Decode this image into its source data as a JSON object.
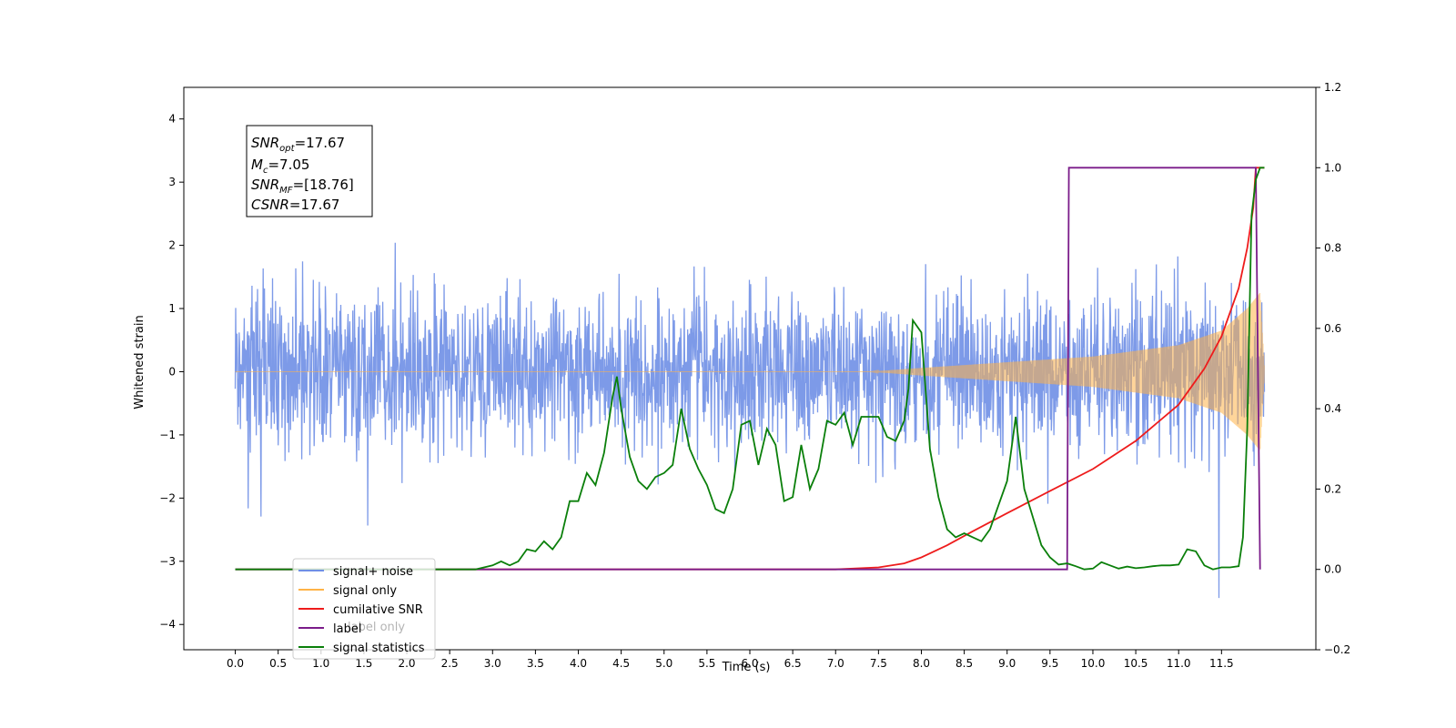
{
  "chart_data": {
    "type": "line",
    "title": "",
    "xlabel": "Time (s)",
    "ylabel_left": "Whitened strain",
    "ylabel_right": "",
    "xlim": [
      -0.6,
      12.6
    ],
    "ylim_left": [
      -4.4,
      4.5
    ],
    "ylim_right": [
      -0.2,
      1.2
    ],
    "x_ticks": [
      "0.0",
      "0.5",
      "1.0",
      "1.5",
      "2.0",
      "2.5",
      "3.0",
      "3.5",
      "4.0",
      "4.5",
      "5.0",
      "5.5",
      "6.0",
      "6.5",
      "7.0",
      "7.5",
      "8.0",
      "8.5",
      "9.0",
      "9.5",
      "10.0",
      "10.5",
      "11.0",
      "11.5"
    ],
    "y_ticks_left": [
      "−4",
      "−3",
      "−2",
      "−1",
      "0",
      "1",
      "2",
      "3",
      "4"
    ],
    "y_ticks_right": [
      "−0.2",
      "0.0",
      "0.2",
      "0.4",
      "0.6",
      "0.8",
      "1.0",
      "1.2"
    ],
    "grid": false,
    "legend_position": "lower-left",
    "annotation": {
      "snr_opt": "=17.67",
      "mc": "=7.05",
      "snr_mf": "=[18.76]",
      "csnr": "=17.67"
    },
    "series": [
      {
        "name": "signal+ noise",
        "axis": "left",
        "color": "#6f8fe6",
        "description": "noise-dominated strain, roughly within ±2.5 with spikes to ±4, from t=0 to t=12",
        "envelope": {
          "typical": 1.6,
          "spike": 3.9
        }
      },
      {
        "name": "signal only",
        "axis": "left",
        "color": "#ffb347",
        "description": "chirp signal growing from 0 at ~7.5s to amplitude ~1.2 at ~11.9s",
        "amplitude_points": [
          [
            0,
            0.0
          ],
          [
            7.4,
            0.0
          ],
          [
            8.0,
            0.06
          ],
          [
            9.0,
            0.15
          ],
          [
            10.0,
            0.24
          ],
          [
            11.0,
            0.42
          ],
          [
            11.5,
            0.65
          ],
          [
            11.8,
            1.0
          ],
          [
            11.95,
            1.25
          ],
          [
            12.0,
            0.1
          ]
        ]
      },
      {
        "name": "cumilative SNR",
        "axis": "right",
        "color": "#ee1c1c",
        "points": [
          [
            0,
            0.0
          ],
          [
            7.0,
            0.0
          ],
          [
            7.5,
            0.005
          ],
          [
            7.8,
            0.015
          ],
          [
            8.0,
            0.03
          ],
          [
            8.3,
            0.06
          ],
          [
            8.6,
            0.095
          ],
          [
            9.0,
            0.14
          ],
          [
            9.5,
            0.195
          ],
          [
            10.0,
            0.25
          ],
          [
            10.5,
            0.32
          ],
          [
            11.0,
            0.41
          ],
          [
            11.3,
            0.5
          ],
          [
            11.5,
            0.58
          ],
          [
            11.7,
            0.7
          ],
          [
            11.8,
            0.8
          ],
          [
            11.87,
            0.9
          ],
          [
            11.9,
            1.0
          ],
          [
            12.0,
            1.0
          ]
        ]
      },
      {
        "name": "label",
        "axis": "right",
        "color": "#7b1c8a",
        "points": [
          [
            0,
            0.0
          ],
          [
            9.7,
            0.0
          ],
          [
            9.72,
            1.0
          ],
          [
            11.9,
            1.0
          ],
          [
            11.95,
            0.0
          ]
        ]
      },
      {
        "name": "label only",
        "axis": "right",
        "color": "#7b1c8a",
        "points": []
      },
      {
        "name": "signal statistics",
        "axis": "right",
        "color": "#0a7f0a",
        "points": [
          [
            0,
            0.0
          ],
          [
            2.5,
            0.0
          ],
          [
            2.8,
            0.0
          ],
          [
            3.0,
            0.01
          ],
          [
            3.1,
            0.02
          ],
          [
            3.2,
            0.01
          ],
          [
            3.3,
            0.02
          ],
          [
            3.4,
            0.05
          ],
          [
            3.5,
            0.045
          ],
          [
            3.6,
            0.07
          ],
          [
            3.7,
            0.05
          ],
          [
            3.8,
            0.08
          ],
          [
            3.9,
            0.17
          ],
          [
            4.0,
            0.17
          ],
          [
            4.1,
            0.24
          ],
          [
            4.2,
            0.21
          ],
          [
            4.3,
            0.29
          ],
          [
            4.4,
            0.43
          ],
          [
            4.45,
            0.48
          ],
          [
            4.5,
            0.4
          ],
          [
            4.6,
            0.28
          ],
          [
            4.7,
            0.22
          ],
          [
            4.8,
            0.2
          ],
          [
            4.9,
            0.23
          ],
          [
            5.0,
            0.24
          ],
          [
            5.1,
            0.26
          ],
          [
            5.2,
            0.4
          ],
          [
            5.3,
            0.3
          ],
          [
            5.4,
            0.25
          ],
          [
            5.5,
            0.21
          ],
          [
            5.6,
            0.15
          ],
          [
            5.7,
            0.14
          ],
          [
            5.8,
            0.2
          ],
          [
            5.9,
            0.36
          ],
          [
            6.0,
            0.37
          ],
          [
            6.1,
            0.26
          ],
          [
            6.2,
            0.35
          ],
          [
            6.3,
            0.31
          ],
          [
            6.4,
            0.17
          ],
          [
            6.5,
            0.18
          ],
          [
            6.6,
            0.31
          ],
          [
            6.7,
            0.2
          ],
          [
            6.8,
            0.25
          ],
          [
            6.9,
            0.37
          ],
          [
            7.0,
            0.36
          ],
          [
            7.1,
            0.39
          ],
          [
            7.2,
            0.31
          ],
          [
            7.3,
            0.38
          ],
          [
            7.4,
            0.38
          ],
          [
            7.5,
            0.38
          ],
          [
            7.6,
            0.33
          ],
          [
            7.7,
            0.32
          ],
          [
            7.8,
            0.37
          ],
          [
            7.85,
            0.45
          ],
          [
            7.9,
            0.62
          ],
          [
            8.0,
            0.59
          ],
          [
            8.1,
            0.3
          ],
          [
            8.2,
            0.18
          ],
          [
            8.3,
            0.1
          ],
          [
            8.4,
            0.08
          ],
          [
            8.5,
            0.09
          ],
          [
            8.6,
            0.08
          ],
          [
            8.7,
            0.07
          ],
          [
            8.8,
            0.1
          ],
          [
            8.9,
            0.16
          ],
          [
            9.0,
            0.22
          ],
          [
            9.1,
            0.38
          ],
          [
            9.2,
            0.2
          ],
          [
            9.3,
            0.13
          ],
          [
            9.4,
            0.06
          ],
          [
            9.5,
            0.03
          ],
          [
            9.6,
            0.012
          ],
          [
            9.7,
            0.015
          ],
          [
            9.8,
            0.008
          ],
          [
            9.9,
            0.0
          ],
          [
            10.0,
            0.002
          ],
          [
            10.1,
            0.018
          ],
          [
            10.2,
            0.01
          ],
          [
            10.3,
            0.002
          ],
          [
            10.4,
            0.007
          ],
          [
            10.5,
            0.003
          ],
          [
            10.6,
            0.005
          ],
          [
            10.7,
            0.008
          ],
          [
            10.8,
            0.01
          ],
          [
            10.9,
            0.01
          ],
          [
            11.0,
            0.012
          ],
          [
            11.1,
            0.05
          ],
          [
            11.2,
            0.045
          ],
          [
            11.3,
            0.01
          ],
          [
            11.4,
            0.0
          ],
          [
            11.5,
            0.005
          ],
          [
            11.6,
            0.005
          ],
          [
            11.7,
            0.008
          ],
          [
            11.75,
            0.08
          ],
          [
            11.8,
            0.35
          ],
          [
            11.85,
            0.88
          ],
          [
            11.9,
            0.97
          ],
          [
            11.95,
            1.0
          ],
          [
            12.0,
            1.0
          ]
        ]
      }
    ]
  }
}
